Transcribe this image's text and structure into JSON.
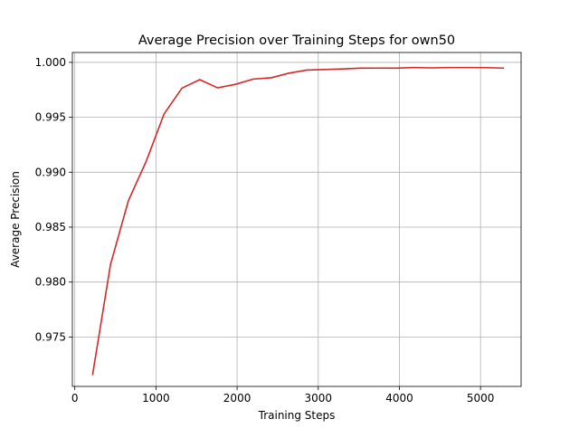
{
  "chart_data": {
    "type": "line",
    "title": "Average Precision over Training Steps for own50",
    "xlabel": "Training Steps",
    "ylabel": "Average Precision",
    "xlim": [
      -30,
      5500
    ],
    "ylim": [
      0.9705,
      1.0009
    ],
    "grid": true,
    "legend": "none",
    "x_ticks": [
      0,
      1000,
      2000,
      3000,
      4000,
      5000
    ],
    "x_tick_labels": [
      "0",
      "1000",
      "2000",
      "3000",
      "4000",
      "5000"
    ],
    "y_ticks": [
      0.975,
      0.98,
      0.985,
      0.99,
      0.995,
      1.0
    ],
    "y_tick_labels": [
      "0.975",
      "0.980",
      "0.985",
      "0.990",
      "0.995",
      "1.000"
    ],
    "series": [
      {
        "color": "#d62728",
        "x": [
          220,
          440,
          660,
          880,
          1100,
          1320,
          1540,
          1760,
          1980,
          2200,
          2420,
          2640,
          2860,
          3080,
          3300,
          3520,
          3740,
          3960,
          4180,
          4400,
          4620,
          4840,
          5060,
          5280
        ],
        "y": [
          0.9716,
          0.9816,
          0.9874,
          0.991,
          0.9953,
          0.99765,
          0.99843,
          0.99768,
          0.998,
          0.99848,
          0.9986,
          0.99902,
          0.9993,
          0.99935,
          0.9994,
          0.99947,
          0.99948,
          0.99947,
          0.99953,
          0.9995,
          0.99953,
          0.99953,
          0.99952,
          0.99948
        ]
      }
    ]
  }
}
